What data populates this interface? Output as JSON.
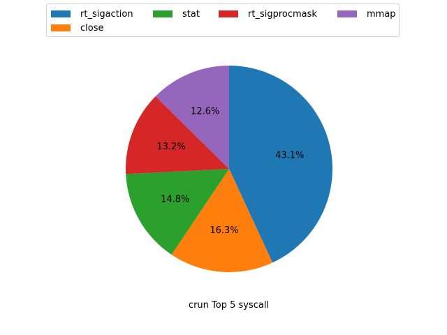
{
  "chart_data": {
    "type": "pie",
    "title": "crun Top 5 syscall",
    "legend_position": "top",
    "start_angle_deg": 90,
    "direction": "clockwise",
    "slices": [
      {
        "label": "rt_sigaction",
        "value": 43.1,
        "pct_label": "43.1%",
        "color": "#1f77b4"
      },
      {
        "label": "close",
        "value": 16.3,
        "pct_label": "16.3%",
        "color": "#ff7f0e"
      },
      {
        "label": "stat",
        "value": 14.8,
        "pct_label": "14.8%",
        "color": "#2ca02c"
      },
      {
        "label": "rt_sigprocmask",
        "value": 13.2,
        "pct_label": "13.2%",
        "color": "#d62728"
      },
      {
        "label": "mmap",
        "value": 12.6,
        "pct_label": "12.6%",
        "color": "#9467bd"
      }
    ]
  }
}
